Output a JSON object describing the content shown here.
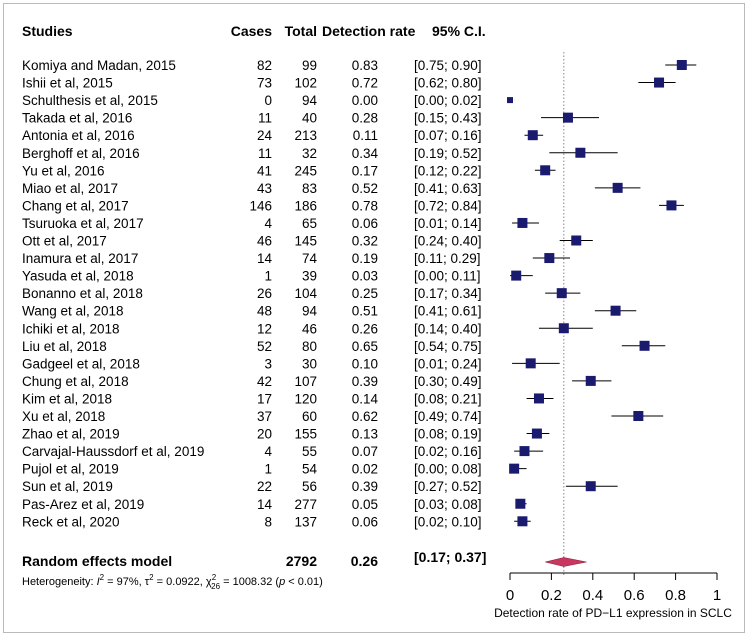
{
  "chart_data": {
    "type": "forest",
    "headers": {
      "study": "Studies",
      "cases": "Cases",
      "total": "Total",
      "rate": "Detection rate",
      "ci": "95% C.I."
    },
    "studies": [
      {
        "name": "Komiya and Madan, 2015",
        "cases": "82",
        "total": "99",
        "rate": "0.83",
        "ci": "[0.75; 0.90]",
        "est": 0.83,
        "lo": 0.75,
        "hi": 0.9,
        "weight": 1.0
      },
      {
        "name": "Ishii et al, 2015",
        "cases": "73",
        "total": "102",
        "rate": "0.72",
        "ci": "[0.62; 0.80]",
        "est": 0.72,
        "lo": 0.62,
        "hi": 0.8,
        "weight": 1.0
      },
      {
        "name": "Schulthesis et al, 2015",
        "cases": "0",
        "total": "94",
        "rate": "0.00",
        "ci": "[0.00; 0.02]",
        "est": 0.0,
        "lo": 0.0,
        "hi": 0.02,
        "weight": 0.7
      },
      {
        "name": "Takada et al, 2016",
        "cases": "11",
        "total": "40",
        "rate": "0.28",
        "ci": "[0.15; 0.43]",
        "est": 0.28,
        "lo": 0.15,
        "hi": 0.43,
        "weight": 1.0
      },
      {
        "name": "Antonia et al, 2016",
        "cases": "24",
        "total": "213",
        "rate": "0.11",
        "ci": "[0.07; 0.16]",
        "est": 0.11,
        "lo": 0.07,
        "hi": 0.16,
        "weight": 1.0
      },
      {
        "name": "Berghoff et al, 2016",
        "cases": "11",
        "total": "32",
        "rate": "0.34",
        "ci": "[0.19; 0.52]",
        "est": 0.34,
        "lo": 0.19,
        "hi": 0.52,
        "weight": 1.0
      },
      {
        "name": "Yu et al, 2016",
        "cases": "41",
        "total": "245",
        "rate": "0.17",
        "ci": "[0.12; 0.22]",
        "est": 0.17,
        "lo": 0.12,
        "hi": 0.22,
        "weight": 1.0
      },
      {
        "name": "Miao et al, 2017",
        "cases": "43",
        "total": "83",
        "rate": "0.52",
        "ci": "[0.41; 0.63]",
        "est": 0.52,
        "lo": 0.41,
        "hi": 0.63,
        "weight": 1.0
      },
      {
        "name": "Chang et al, 2017",
        "cases": "146",
        "total": "186",
        "rate": "0.78",
        "ci": "[0.72; 0.84]",
        "est": 0.78,
        "lo": 0.72,
        "hi": 0.84,
        "weight": 1.0
      },
      {
        "name": "Tsuruoka et al, 2017",
        "cases": "4",
        "total": "65",
        "rate": "0.06",
        "ci": "[0.01; 0.14]",
        "est": 0.06,
        "lo": 0.01,
        "hi": 0.14,
        "weight": 1.0
      },
      {
        "name": "Ott et al, 2017",
        "cases": "46",
        "total": "145",
        "rate": "0.32",
        "ci": "[0.24; 0.40]",
        "est": 0.32,
        "lo": 0.24,
        "hi": 0.4,
        "weight": 1.0
      },
      {
        "name": "Inamura et al, 2017",
        "cases": "14",
        "total": "74",
        "rate": "0.19",
        "ci": "[0.11; 0.29]",
        "est": 0.19,
        "lo": 0.11,
        "hi": 0.29,
        "weight": 1.0
      },
      {
        "name": "Yasuda et al, 2018",
        "cases": "1",
        "total": "39",
        "rate": "0.03",
        "ci": "[0.00; 0.11]",
        "est": 0.03,
        "lo": 0.0,
        "hi": 0.11,
        "weight": 1.0
      },
      {
        "name": "Bonanno et al, 2018",
        "cases": "26",
        "total": "104",
        "rate": "0.25",
        "ci": "[0.17; 0.34]",
        "est": 0.25,
        "lo": 0.17,
        "hi": 0.34,
        "weight": 1.0
      },
      {
        "name": "Wang et al, 2018",
        "cases": "48",
        "total": "94",
        "rate": "0.51",
        "ci": "[0.41; 0.61]",
        "est": 0.51,
        "lo": 0.41,
        "hi": 0.61,
        "weight": 1.0
      },
      {
        "name": "Ichiki et al, 2018",
        "cases": "12",
        "total": "46",
        "rate": "0.26",
        "ci": "[0.14; 0.40]",
        "est": 0.26,
        "lo": 0.14,
        "hi": 0.4,
        "weight": 1.0
      },
      {
        "name": "Liu et al, 2018",
        "cases": "52",
        "total": "80",
        "rate": "0.65",
        "ci": "[0.54; 0.75]",
        "est": 0.65,
        "lo": 0.54,
        "hi": 0.75,
        "weight": 1.0
      },
      {
        "name": "Gadgeel et al, 2018",
        "cases": "3",
        "total": "30",
        "rate": "0.10",
        "ci": "[0.01; 0.24]",
        "est": 0.1,
        "lo": 0.01,
        "hi": 0.24,
        "weight": 1.0
      },
      {
        "name": "Chung et al, 2018",
        "cases": "42",
        "total": "107",
        "rate": "0.39",
        "ci": "[0.30; 0.49]",
        "est": 0.39,
        "lo": 0.3,
        "hi": 0.49,
        "weight": 1.0
      },
      {
        "name": "Kim et al, 2018",
        "cases": "17",
        "total": "120",
        "rate": "0.14",
        "ci": "[0.08; 0.21]",
        "est": 0.14,
        "lo": 0.08,
        "hi": 0.21,
        "weight": 1.0
      },
      {
        "name": "Xu et al, 2018",
        "cases": "37",
        "total": "60",
        "rate": "0.62",
        "ci": "[0.49; 0.74]",
        "est": 0.62,
        "lo": 0.49,
        "hi": 0.74,
        "weight": 1.0
      },
      {
        "name": "Zhao et al, 2019",
        "cases": "20",
        "total": "155",
        "rate": "0.13",
        "ci": "[0.08; 0.19]",
        "est": 0.13,
        "lo": 0.08,
        "hi": 0.19,
        "weight": 1.0
      },
      {
        "name": "Carvajal-Haussdorf et al, 2019",
        "cases": "4",
        "total": "55",
        "rate": "0.07",
        "ci": "[0.02; 0.16]",
        "est": 0.07,
        "lo": 0.02,
        "hi": 0.16,
        "weight": 1.0
      },
      {
        "name": "Pujol et al, 2019",
        "cases": "1",
        "total": "54",
        "rate": "0.02",
        "ci": "[0.00; 0.08]",
        "est": 0.02,
        "lo": 0.0,
        "hi": 0.08,
        "weight": 1.0
      },
      {
        "name": "Sun et al, 2019",
        "cases": "22",
        "total": "56",
        "rate": "0.39",
        "ci": "[0.27; 0.52]",
        "est": 0.39,
        "lo": 0.27,
        "hi": 0.52,
        "weight": 1.0
      },
      {
        "name": "Pas-Arez et al, 2019",
        "cases": "14",
        "total": "277",
        "rate": "0.05",
        "ci": "[0.03; 0.08]",
        "est": 0.05,
        "lo": 0.03,
        "hi": 0.08,
        "weight": 1.0
      },
      {
        "name": "Reck et al, 2020",
        "cases": "8",
        "total": "137",
        "rate": "0.06",
        "ci": "[0.02; 0.10]",
        "est": 0.06,
        "lo": 0.02,
        "hi": 0.1,
        "weight": 1.0
      }
    ],
    "summary": {
      "label": "Random effects model",
      "total": "2792",
      "rate": "0.26",
      "ci": "[0.17; 0.37]",
      "est": 0.26,
      "lo": 0.17,
      "hi": 0.37
    },
    "heterogeneity": {
      "prefix": "Heterogeneity: ",
      "i2_symbol": "I",
      "i2_sup": "2",
      "i2_value": " = 97%, ",
      "tau2_symbol": "τ",
      "tau2_sup": "2",
      "tau2_value": " = 0.0922, ",
      "chi2_symbol": "χ",
      "chi2_sup": "2",
      "chi2_sub": "26",
      "chi2_value": " = 1008.32 (",
      "p_symbol": "p",
      "p_value": " < 0.01)"
    },
    "x_axis": {
      "range": [
        0,
        1
      ],
      "ticks": [
        0,
        0.2,
        0.4,
        0.6,
        0.8,
        1
      ],
      "tick_labels": [
        "0",
        "0.2",
        "0.4",
        "0.6",
        "0.8",
        "1"
      ],
      "label": "Detection rate of PD−L1 expression in SCLC"
    },
    "reference_line": 0.26,
    "colors": {
      "square": "#1a1a6e",
      "diamond": "#c8375f",
      "text": "#000000",
      "reference_line": "#888888",
      "frame": "#bbbbbb"
    }
  }
}
